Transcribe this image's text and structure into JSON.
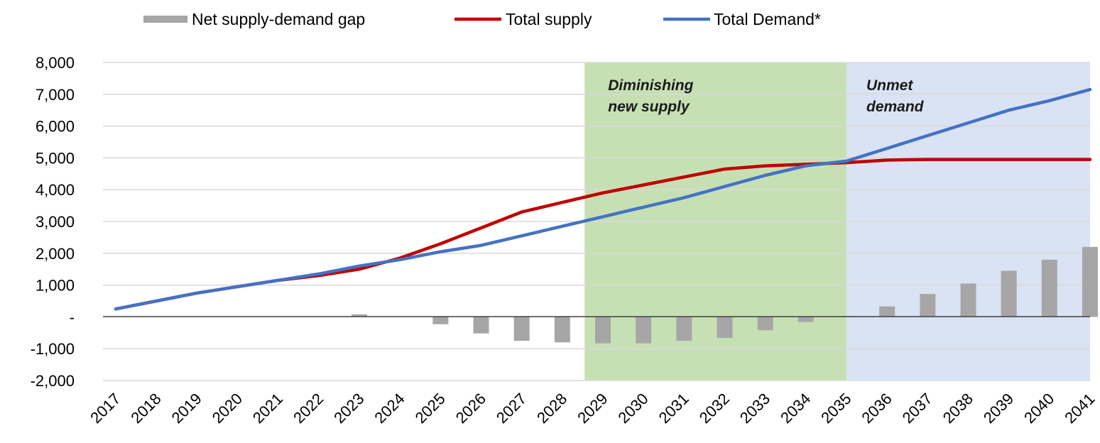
{
  "chart_data": {
    "type": "bar",
    "title": "",
    "xlabel": "",
    "ylabel": "",
    "ylim": [
      -2000,
      8000
    ],
    "grid": true,
    "legend_position": "top",
    "categories": [
      "2017",
      "2018",
      "2019",
      "2020",
      "2021",
      "2022",
      "2023",
      "2024",
      "2025",
      "2026",
      "2027",
      "2028",
      "2029",
      "2030",
      "2031",
      "2032",
      "2033",
      "2034",
      "2035",
      "2036",
      "2037",
      "2038",
      "2039",
      "2040",
      "2041"
    ],
    "y_tick_labels": [
      "8,000",
      "7,000",
      "6,000",
      "5,000",
      "4,000",
      "3,000",
      "2,000",
      "1,000",
      "-",
      "-1,000",
      "-2,000"
    ],
    "y_tick_values": [
      8000,
      7000,
      6000,
      5000,
      4000,
      3000,
      2000,
      1000,
      0,
      -1000,
      -2000
    ],
    "series": [
      {
        "name": "Net supply-demand gap",
        "kind": "bar",
        "color": "#a6a6a6",
        "values": [
          0,
          0,
          0,
          0,
          0,
          20,
          80,
          0,
          -230,
          -520,
          -750,
          -800,
          -830,
          -830,
          -750,
          -660,
          -420,
          -160,
          30,
          330,
          720,
          1050,
          1450,
          1800,
          2200
        ]
      },
      {
        "name": "Total supply",
        "kind": "line",
        "color": "#c00000",
        "values": [
          250,
          500,
          750,
          950,
          1150,
          1300,
          1500,
          1850,
          2300,
          2800,
          3300,
          3600,
          3900,
          4150,
          4400,
          4650,
          4750,
          4800,
          4850,
          4930,
          4950,
          4950,
          4950,
          4950,
          4950
        ]
      },
      {
        "name": "Total Demand*",
        "kind": "line",
        "color": "#4472c4",
        "values": [
          250,
          500,
          750,
          950,
          1150,
          1350,
          1600,
          1800,
          2050,
          2250,
          2550,
          2850,
          3150,
          3450,
          3750,
          4100,
          4450,
          4750,
          4900,
          5300,
          5700,
          6100,
          6500,
          6800,
          7150
        ]
      }
    ],
    "zones": [
      {
        "label_lines": [
          "Diminishing",
          "new supply"
        ],
        "from": "2028",
        "to": "2035",
        "color": "#c6e0b4"
      },
      {
        "label_lines": [
          "Unmet",
          "demand"
        ],
        "from": "2035",
        "to": "2041",
        "color": "#dae3f3"
      }
    ]
  }
}
